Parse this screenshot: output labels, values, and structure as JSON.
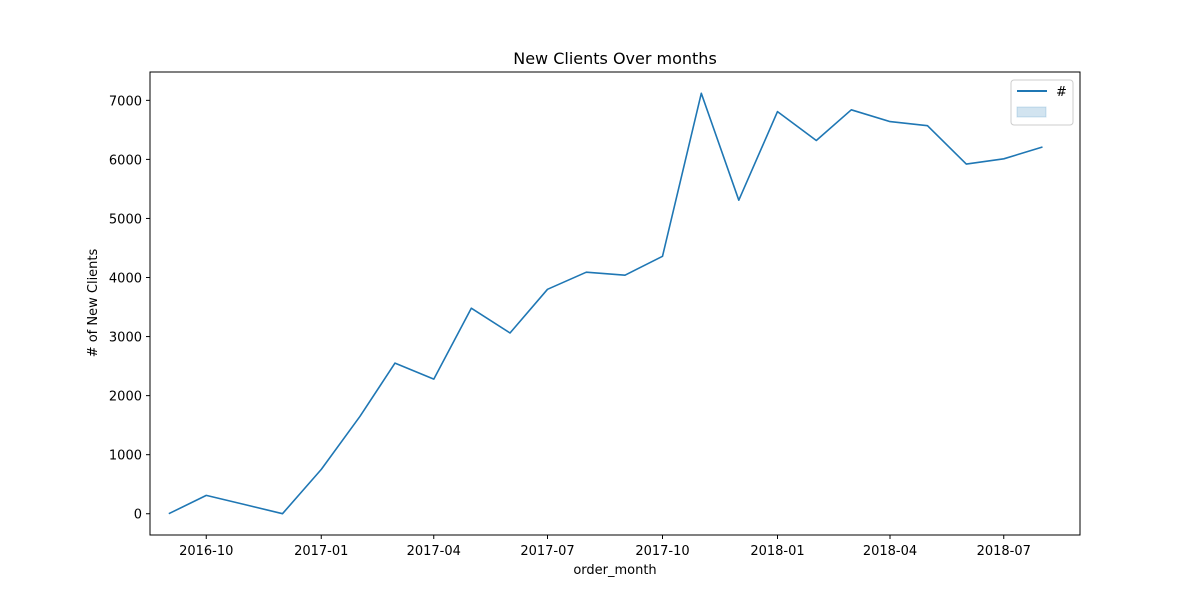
{
  "chart_data": {
    "type": "line",
    "title": "New Clients Over months",
    "xlabel": "order_month",
    "ylabel": "# of New Clients",
    "x": [
      "2016-09",
      "2016-10",
      "2016-11",
      "2016-12",
      "2017-01",
      "2017-02",
      "2017-03",
      "2017-04",
      "2017-05",
      "2017-06",
      "2017-07",
      "2017-08",
      "2017-09",
      "2017-10",
      "2017-11",
      "2017-12",
      "2018-01",
      "2018-02",
      "2018-03",
      "2018-04",
      "2018-05",
      "2018-06",
      "2018-07",
      "2018-08"
    ],
    "series": [
      {
        "name": "#",
        "color": "#1f77b4",
        "values": [
          0,
          310,
          155,
          0,
          750,
          1650,
          2550,
          2280,
          3480,
          3060,
          3800,
          4090,
          4040,
          4360,
          7120,
          5310,
          6810,
          6320,
          6840,
          6640,
          6570,
          5920,
          6010,
          6210
        ]
      }
    ],
    "x_ticks": [
      "2016-10",
      "2017-01",
      "2017-04",
      "2017-07",
      "2017-10",
      "2018-01",
      "2018-04",
      "2018-07"
    ],
    "y_ticks": [
      0,
      1000,
      2000,
      3000,
      4000,
      5000,
      6000,
      7000
    ],
    "xlim": [
      "2016-08-17",
      "2018-08-31"
    ],
    "ylim": [
      -360,
      7480
    ],
    "grid": false,
    "legend": {
      "position": "top-right",
      "entries": [
        {
          "label": "#",
          "kind": "line",
          "color": "#1f77b4"
        },
        {
          "label": "",
          "kind": "band",
          "color": "#1f77b4"
        }
      ]
    }
  }
}
